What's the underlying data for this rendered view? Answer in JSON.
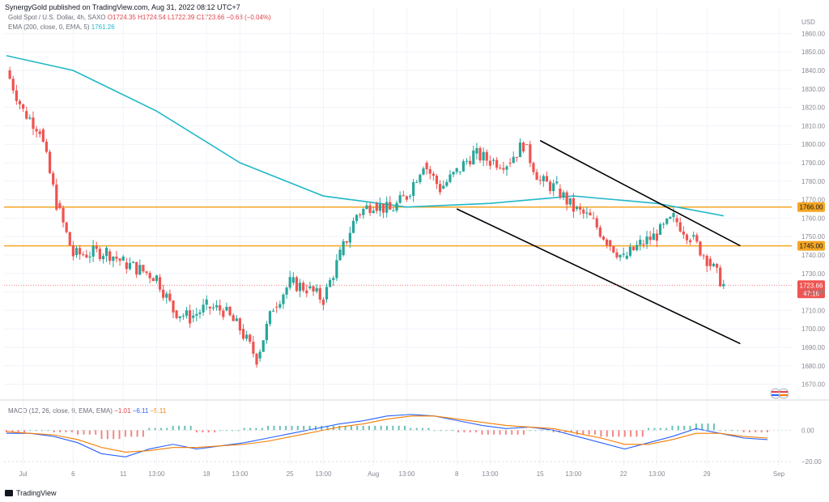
{
  "header": {
    "publisher_line": "SynergyGold published on TradingView.com, Aug 31, 2022 08:12 UTC+7"
  },
  "legend": {
    "symbol": "Gold Spot / U.S. Dollar, 4h, SAXO",
    "ohlc": "O1724.35 H1724.54 L1722.39 C1723.66 −0.68 (−0.04%)",
    "ema_label": "EMA (200, close, 0, EMA, 5)",
    "ema_value": "1761.26",
    "macd_label": "MACD (12, 26, close, 9, EMA, EMA)",
    "macd_hist": "−1.01",
    "macd_line": "−6.11",
    "macd_signal": "−5.11"
  },
  "footer": {
    "brand": "TradingView"
  },
  "colors": {
    "up": "#26a69a",
    "down": "#ef5350",
    "ema": "#22b8c8",
    "level": "#f5a623",
    "channel": "#000000",
    "price_tag": "#ef5350"
  },
  "chart_data": {
    "type": "candlestick",
    "currency": "USD",
    "timeframe": "4h",
    "ylim": [
      1665,
      1865
    ],
    "yticks": [
      1670,
      1680,
      1690,
      1700,
      1710,
      1720,
      1730,
      1740,
      1750,
      1760,
      1770,
      1780,
      1790,
      1800,
      1810,
      1820,
      1830,
      1840,
      1850,
      1860
    ],
    "xticks": [
      "Jul",
      "6",
      "11",
      "13:00",
      "18",
      "13:00",
      "25",
      "13:00",
      "Aug",
      "13:00",
      "8",
      "13:00",
      "15",
      "13:00",
      "22",
      "13:00",
      "29",
      "Sep"
    ],
    "close_path": [
      {
        "x": "Jun 30",
        "close": 1840
      },
      {
        "x": "Jul 1",
        "close": 1818
      },
      {
        "x": "Jul 4",
        "close": 1808
      },
      {
        "x": "Jul 5",
        "close": 1768
      },
      {
        "x": "Jul 6",
        "close": 1740
      },
      {
        "x": "Jul 8",
        "close": 1742
      },
      {
        "x": "Jul 11",
        "close": 1736
      },
      {
        "x": "Jul 13",
        "close": 1728
      },
      {
        "x": "Jul 14",
        "close": 1710
      },
      {
        "x": "Jul 15",
        "close": 1706
      },
      {
        "x": "Jul 18",
        "close": 1712
      },
      {
        "x": "Jul 19",
        "close": 1710
      },
      {
        "x": "Jul 20",
        "close": 1700
      },
      {
        "x": "Jul 21",
        "close": 1684
      },
      {
        "x": "Jul 22",
        "close": 1712
      },
      {
        "x": "Jul 25",
        "close": 1725
      },
      {
        "x": "Jul 26",
        "close": 1722
      },
      {
        "x": "Jul 27",
        "close": 1716
      },
      {
        "x": "Jul 28",
        "close": 1740
      },
      {
        "x": "Jul 29",
        "close": 1762
      },
      {
        "x": "Aug 1",
        "close": 1768
      },
      {
        "x": "Aug 2",
        "close": 1764
      },
      {
        "x": "Aug 3",
        "close": 1772
      },
      {
        "x": "Aug 4",
        "close": 1790
      },
      {
        "x": "Aug 5",
        "close": 1776
      },
      {
        "x": "Aug 8",
        "close": 1785
      },
      {
        "x": "Aug 9",
        "close": 1795
      },
      {
        "x": "Aug 10",
        "close": 1791
      },
      {
        "x": "Aug 11",
        "close": 1790
      },
      {
        "x": "Aug 12",
        "close": 1800
      },
      {
        "x": "Aug 15",
        "close": 1780
      },
      {
        "x": "Aug 16",
        "close": 1776
      },
      {
        "x": "Aug 17",
        "close": 1765
      },
      {
        "x": "Aug 18",
        "close": 1760
      },
      {
        "x": "Aug 19",
        "close": 1748
      },
      {
        "x": "Aug 22",
        "close": 1738
      },
      {
        "x": "Aug 23",
        "close": 1746
      },
      {
        "x": "Aug 24",
        "close": 1751
      },
      {
        "x": "Aug 25",
        "close": 1760
      },
      {
        "x": "Aug 26",
        "close": 1750
      },
      {
        "x": "Aug 29",
        "close": 1738
      },
      {
        "x": "Aug 30",
        "close": 1723.66
      }
    ],
    "ema200": [
      {
        "x": "Jun 30",
        "value": 1848
      },
      {
        "x": "Jul 6",
        "value": 1840
      },
      {
        "x": "Jul 13",
        "value": 1818
      },
      {
        "x": "Jul 20",
        "value": 1790
      },
      {
        "x": "Jul 27",
        "value": 1772
      },
      {
        "x": "Aug 3",
        "value": 1766
      },
      {
        "x": "Aug 10",
        "value": 1768
      },
      {
        "x": "Aug 17",
        "value": 1772
      },
      {
        "x": "Aug 24",
        "value": 1768
      },
      {
        "x": "Aug 30",
        "value": 1761.26
      }
    ],
    "levels": [
      {
        "price": 1766.0,
        "label": "1766.00"
      },
      {
        "price": 1745.0,
        "label": "1745.00"
      }
    ],
    "channel_lines": [
      {
        "from": {
          "x": "Aug 15",
          "y": 1802
        },
        "to": {
          "x": "Aug 31",
          "y": 1745
        }
      },
      {
        "from": {
          "x": "Aug 8",
          "y": 1765
        },
        "to": {
          "x": "Aug 31",
          "y": 1692
        }
      }
    ],
    "last_price": {
      "label": "1723.66",
      "countdown": "47:16"
    },
    "macd": {
      "ylim": [
        -22,
        12
      ],
      "yticks": [
        0.0,
        -20.0
      ],
      "ytick_labels": [
        "0.00",
        "−20.00"
      ],
      "line": [
        -2,
        -2,
        -4,
        -8,
        -15,
        -17,
        -12,
        -9,
        -12,
        -10,
        -8,
        -5,
        -2,
        1,
        4,
        6,
        9,
        10,
        9,
        6,
        3,
        1,
        2,
        0,
        -4,
        -8,
        -12,
        -8,
        -4,
        1,
        -2,
        -5,
        -6
      ],
      "signal": [
        -1,
        -2,
        -3,
        -6,
        -11,
        -14,
        -13,
        -11,
        -11,
        -10,
        -9,
        -7,
        -4,
        -1,
        2,
        4,
        7,
        9,
        9,
        7,
        5,
        3,
        2,
        1,
        -2,
        -5,
        -9,
        -9,
        -6,
        -2,
        -2,
        -4,
        -5
      ]
    }
  }
}
